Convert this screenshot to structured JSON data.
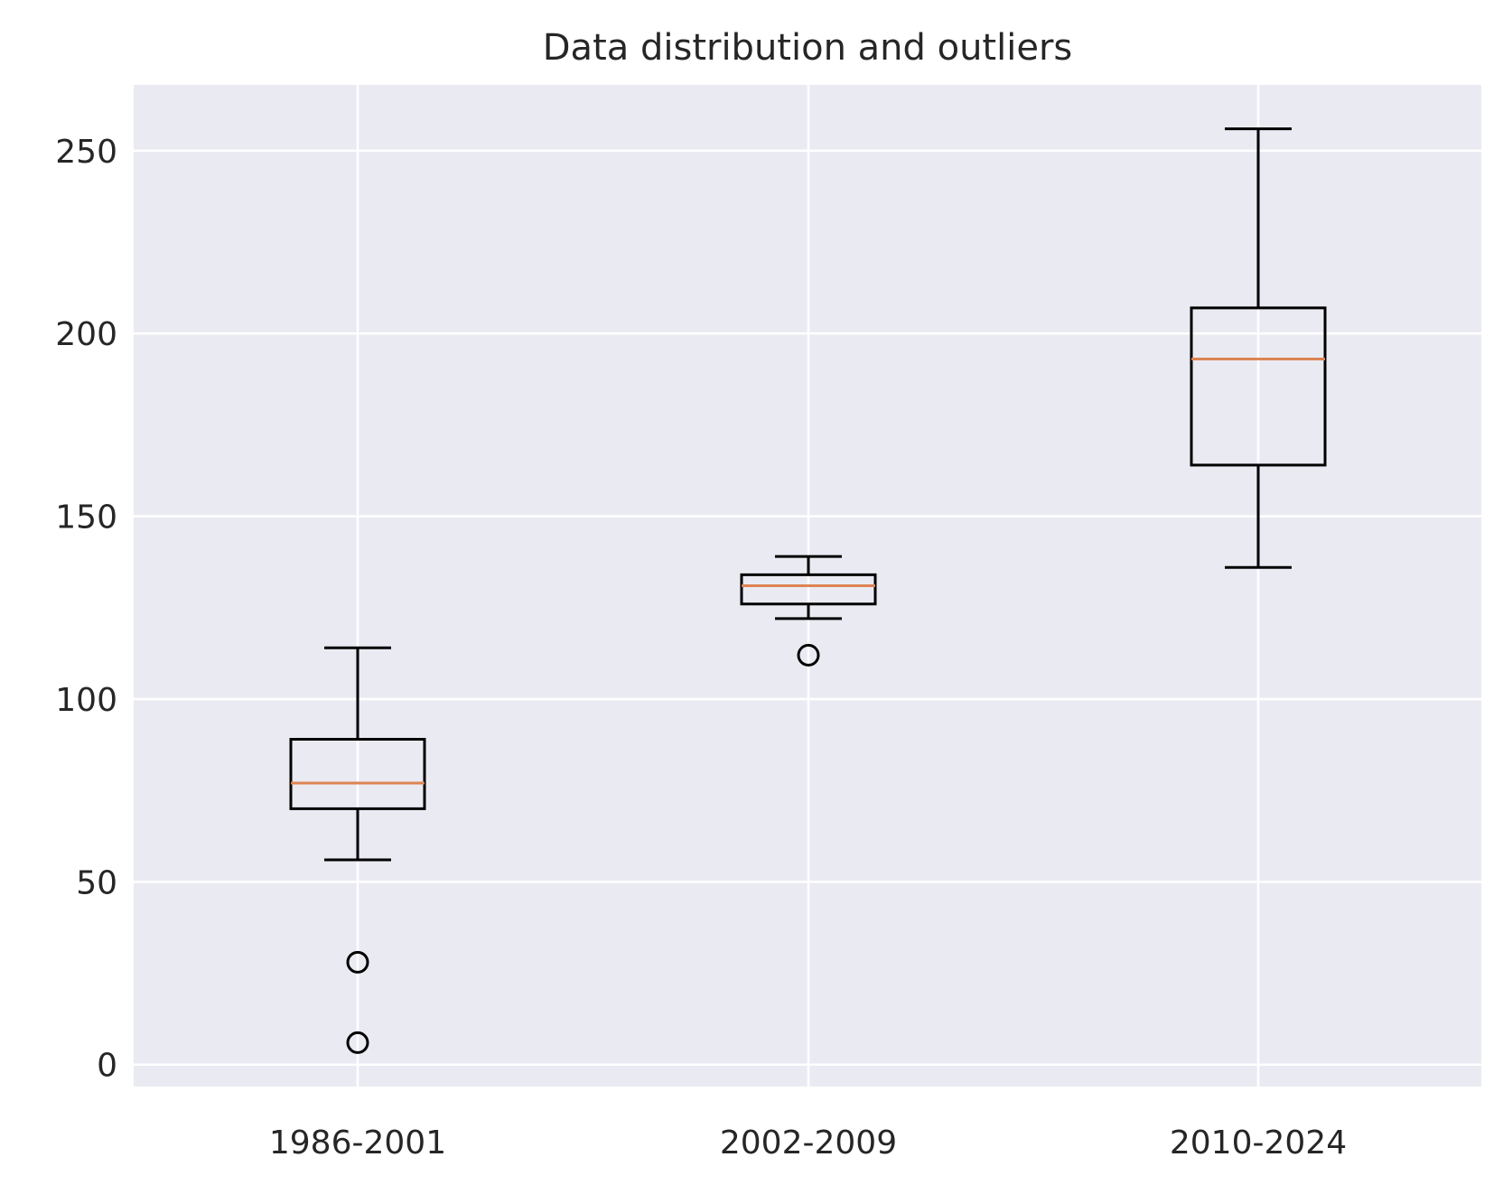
{
  "chart_data": {
    "type": "box",
    "title": "Data distribution and outliers",
    "xlabel": "",
    "ylabel": "",
    "categories": [
      "1986-2001",
      "2002-2009",
      "2010-2024"
    ],
    "boxes": [
      {
        "category": "1986-2001",
        "whisker_low": 56,
        "q1": 70,
        "median": 77,
        "q3": 89,
        "whisker_high": 114,
        "outliers": [
          28,
          6
        ]
      },
      {
        "category": "2002-2009",
        "whisker_low": 122,
        "q1": 126,
        "median": 131,
        "q3": 134,
        "whisker_high": 139,
        "outliers": [
          112
        ]
      },
      {
        "category": "2010-2024",
        "whisker_low": 136,
        "q1": 164,
        "median": 193,
        "q3": 207,
        "whisker_high": 256,
        "outliers": []
      }
    ],
    "y_ticks": [
      0,
      50,
      100,
      150,
      200,
      250
    ],
    "ylim": [
      -6,
      268
    ],
    "grid": true,
    "colors": {
      "plot_background": "#eaeaf2",
      "grid": "#ffffff",
      "box": "#000000",
      "median": "#dd8452",
      "text": "#262626"
    }
  }
}
